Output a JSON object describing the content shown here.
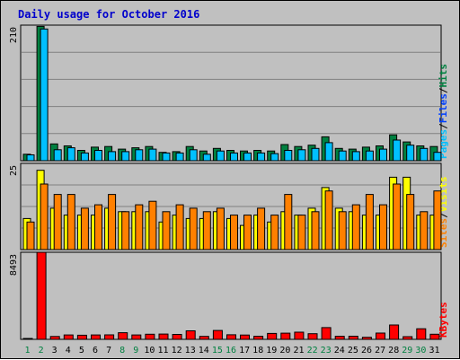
{
  "title": "Daily usage for October 2016",
  "colors": {
    "title": "#0000cc",
    "background": "#c0c0c0",
    "plot": "#c0c0c0",
    "grid": "#808080",
    "pages": "#00c0ff",
    "hits": "#008040",
    "files": "#0040ff",
    "visits": "#ffff00",
    "sites": "#ff8000",
    "kbytes": "#ff0000",
    "weekday": "#000000",
    "weekend": "#008040"
  },
  "chart_data": [
    {
      "type": "bar",
      "panel": "top",
      "ymax_label": "210",
      "ylim": [
        0,
        210
      ],
      "categories": [
        "1",
        "2",
        "3",
        "4",
        "5",
        "6",
        "7",
        "8",
        "9",
        "10",
        "11",
        "12",
        "13",
        "14",
        "15",
        "16",
        "17",
        "18",
        "19",
        "20",
        "21",
        "22",
        "23",
        "24",
        "25",
        "26",
        "27",
        "28",
        "29",
        "30",
        "31"
      ],
      "weekend_days": [
        "1",
        "2",
        "8",
        "9",
        "15",
        "16",
        "22",
        "23",
        "29",
        "30"
      ],
      "legend": [
        {
          "label": "Hits",
          "color": "#008040"
        },
        {
          "sep": "/"
        },
        {
          "label": "Files",
          "color": "#0040ff"
        },
        {
          "sep": "/"
        },
        {
          "label": "Pages",
          "color": "#00c0ff"
        }
      ],
      "series": [
        {
          "name": "Hits",
          "values": [
            10,
            208,
            26,
            23,
            16,
            21,
            22,
            18,
            20,
            22,
            13,
            14,
            22,
            15,
            19,
            16,
            15,
            16,
            15,
            25,
            22,
            24,
            37,
            19,
            18,
            21,
            23,
            40,
            29,
            23,
            22
          ]
        },
        {
          "name": "Pages",
          "values": [
            9,
            204,
            17,
            20,
            12,
            16,
            14,
            14,
            17,
            18,
            12,
            12,
            17,
            10,
            15,
            12,
            12,
            12,
            11,
            16,
            17,
            19,
            28,
            15,
            14,
            15,
            18,
            32,
            24,
            19,
            13
          ]
        }
      ]
    },
    {
      "type": "bar",
      "panel": "middle",
      "ymax_label": "25",
      "ylim": [
        0,
        25
      ],
      "legend": [
        {
          "label": "Visits",
          "color": "#ffff00"
        },
        {
          "sep": "/"
        },
        {
          "label": "Sites",
          "color": "#ff8000"
        }
      ],
      "series": [
        {
          "name": "Visits",
          "values": [
            9,
            23,
            12,
            10,
            10,
            10,
            12,
            11,
            11,
            11,
            8,
            10,
            9,
            9,
            11,
            9,
            7,
            10,
            8,
            11,
            10,
            12,
            18,
            12,
            11,
            10,
            10,
            21,
            21,
            10,
            10
          ]
        },
        {
          "name": "Sites",
          "values": [
            8,
            19,
            16,
            16,
            12,
            13,
            16,
            11,
            13,
            14,
            11,
            13,
            12,
            11,
            12,
            10,
            10,
            12,
            10,
            16,
            10,
            11,
            17,
            11,
            13,
            16,
            13,
            19,
            16,
            11,
            17
          ]
        }
      ]
    },
    {
      "type": "bar",
      "panel": "bottom",
      "ymax_label": "8493",
      "ylim": [
        0,
        8493
      ],
      "legend": [
        {
          "label": "KBytes",
          "color": "#ff0000"
        }
      ],
      "series": [
        {
          "name": "KBytes",
          "values": [
            60,
            8490,
            280,
            430,
            400,
            430,
            440,
            650,
            430,
            500,
            520,
            480,
            830,
            290,
            870,
            450,
            420,
            300,
            580,
            600,
            700,
            550,
            1150,
            300,
            310,
            200,
            610,
            1400,
            260,
            1030,
            500
          ]
        }
      ]
    }
  ]
}
